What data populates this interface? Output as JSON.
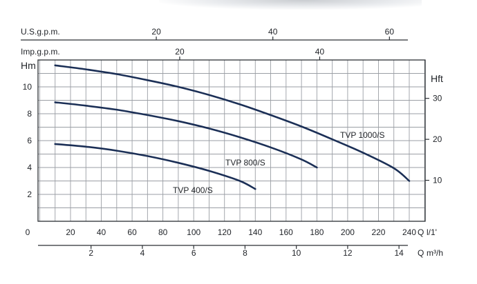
{
  "chart_data": {
    "type": "line",
    "title": "",
    "xlabel": "l/1'",
    "ylabel": "Hm",
    "xlim": [
      0,
      250
    ],
    "ylim": [
      0,
      12
    ],
    "grid": true,
    "x_ticks": [
      0,
      20,
      40,
      60,
      80,
      100,
      120,
      140,
      160,
      180,
      200,
      220,
      240
    ],
    "y_ticks": [
      2,
      4,
      6,
      8,
      10
    ],
    "axes": {
      "primary_x_unit": "Q",
      "primary_x_unit_label": "l/1'",
      "primary_y_label": "Hm",
      "secondary_x": {
        "unit_prefix": "Q",
        "unit": "m³/h",
        "ticks": [
          2,
          4,
          6,
          8,
          10,
          12,
          14
        ],
        "factor": 0.06
      },
      "top_x_us": {
        "label": "U.S.g.p.m.",
        "ticks": [
          20,
          40,
          60
        ],
        "factor": 0.264172
      },
      "top_x_imp": {
        "label": "Imp.g.p.m.",
        "ticks": [
          20,
          40
        ],
        "factor": 0.219969
      },
      "secondary_y": {
        "label": "Hft",
        "ticks": [
          10,
          20,
          30
        ],
        "factor": 3.28084
      }
    },
    "series": [
      {
        "name": "TVP 1000/S",
        "x": [
          10,
          30,
          50,
          70,
          90,
          110,
          130,
          150,
          170,
          190,
          210,
          230,
          240
        ],
        "y": [
          11.6,
          11.3,
          10.95,
          10.5,
          10.0,
          9.4,
          8.7,
          7.9,
          7.05,
          6.1,
          5.1,
          3.95,
          3.0
        ]
      },
      {
        "name": "TVP 800/S",
        "x": [
          10,
          30,
          50,
          70,
          90,
          110,
          130,
          150,
          170,
          180
        ],
        "y": [
          8.85,
          8.6,
          8.3,
          7.9,
          7.45,
          6.9,
          6.25,
          5.5,
          4.6,
          4.0
        ]
      },
      {
        "name": "TVP 400/S",
        "x": [
          10,
          30,
          50,
          70,
          90,
          110,
          130,
          140
        ],
        "y": [
          5.75,
          5.55,
          5.25,
          4.85,
          4.35,
          3.75,
          3.0,
          2.4
        ]
      }
    ]
  }
}
